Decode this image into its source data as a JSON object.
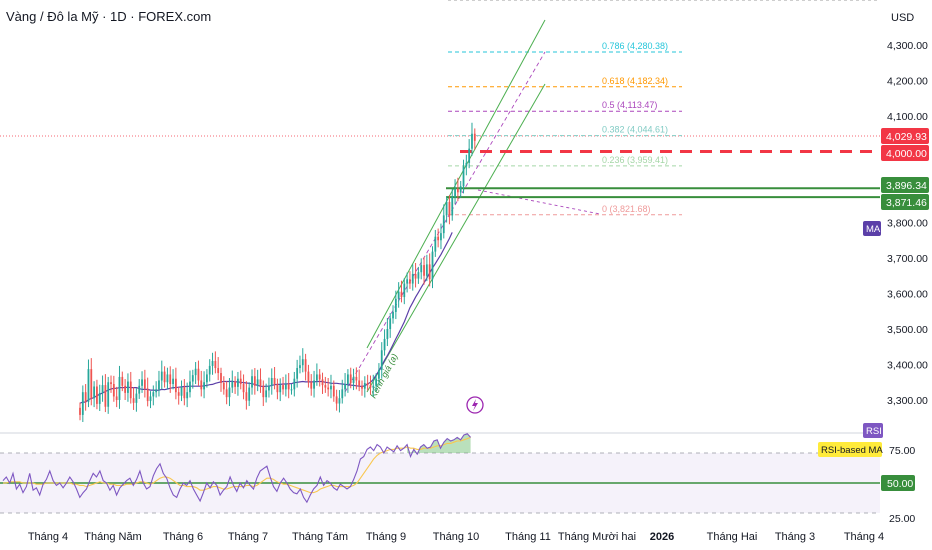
{
  "header": {
    "title": "Vàng / Đô la Mỹ · 1D · FOREX.com",
    "currency": "USD"
  },
  "price_axis": {
    "ticks": [
      {
        "v": 4300,
        "label": "4,300.00"
      },
      {
        "v": 4200,
        "label": "4,200.00"
      },
      {
        "v": 4100,
        "label": "4,100.00"
      },
      {
        "v": 3800,
        "label": "3,800.00"
      },
      {
        "v": 3700,
        "label": "3,700.00"
      },
      {
        "v": 3600,
        "label": "3,600.00"
      },
      {
        "v": 3500,
        "label": "3,500.00"
      },
      {
        "v": 3400,
        "label": "3,400.00"
      },
      {
        "v": 3300,
        "label": "3,300.00"
      }
    ],
    "tags": [
      {
        "v": 4029.93,
        "label": "4,029.93",
        "bg": "#f23645",
        "fg": "#ffffff"
      },
      {
        "v": 4000,
        "label": "4,000.00",
        "bg": "#f23645",
        "fg": "#ffffff"
      },
      {
        "v": 3896.34,
        "label": "3,896.34",
        "bg": "#388e3c",
        "fg": "#ffffff"
      },
      {
        "v": 3871.46,
        "label": "3,871.46",
        "bg": "#388e3c",
        "fg": "#ffffff"
      }
    ]
  },
  "rsi_axis": {
    "ticks": [
      {
        "v": 75,
        "label": "75.00"
      },
      {
        "v": 25,
        "label": "25.00"
      }
    ],
    "tags": [
      {
        "v": 50,
        "label": "50.00",
        "bg": "#388e3c",
        "fg": "#ffffff"
      }
    ]
  },
  "fib_levels": [
    {
      "ratio": "0.786",
      "price": 4280.38,
      "label": "0.786 (4,280.38)",
      "color": "#26c6da"
    },
    {
      "ratio": "0.618",
      "price": 4182.34,
      "label": "0.618 (4,182.34)",
      "color": "#ff9800"
    },
    {
      "ratio": "0.5",
      "price": 4113.47,
      "label": "0.5 (4,113.47)",
      "color": "#ab47bc"
    },
    {
      "ratio": "0.382",
      "price": 4044.61,
      "label": "0.382 (4,044.61)",
      "color": "#80cbc4"
    },
    {
      "ratio": "0.236",
      "price": 3959.41,
      "label": "0.236 (3,959.41)",
      "color": "#a5d6a7"
    },
    {
      "ratio": "0",
      "price": 3821.68,
      "label": "0 (3,821.68)",
      "color": "#ef9a9a"
    }
  ],
  "time_axis": [
    "Tháng 4",
    "Tháng Năm",
    "Tháng 6",
    "Tháng 7",
    "Tháng Tám",
    "Tháng 9",
    "Tháng 10",
    "Tháng 11",
    "Tháng Mười hai",
    "2026",
    "Tháng Hai",
    "Tháng 3",
    "Tháng 4"
  ],
  "labels": {
    "ma": "MA",
    "rsi": "RSI",
    "rsi_ma": "RSI-based MA",
    "channel": "Kênh giá (a)"
  },
  "colors": {
    "up": "#26a69a",
    "down": "#ef5350",
    "ma": "#5b3fa8",
    "rsi": "#7e57c2",
    "rsi_ma": "#f9c74f",
    "support": "#388e3c",
    "resistance": "#f23645"
  },
  "chart_data": {
    "type": "candlestick",
    "title": "Vàng / Đô la Mỹ · 1D · FOREX.com",
    "ylabel": "USD",
    "ylim": [
      3235,
      4380
    ],
    "x_ticks": [
      "Tháng 4",
      "Tháng Năm",
      "Tháng 6",
      "Tháng 7",
      "Tháng Tám",
      "Tháng 9",
      "Tháng 10",
      "Tháng 11",
      "Tháng Mười hai",
      "2026",
      "Tháng Hai",
      "Tháng 3",
      "Tháng 4"
    ],
    "close": [
      3258,
      3322,
      3295,
      3387,
      3305,
      3338,
      3289,
      3320,
      3342,
      3281,
      3350,
      3345,
      3310,
      3300,
      3365,
      3340,
      3320,
      3352,
      3305,
      3292,
      3318,
      3340,
      3358,
      3332,
      3297,
      3310,
      3322,
      3330,
      3355,
      3380,
      3350,
      3372,
      3345,
      3360,
      3322,
      3312,
      3336,
      3305,
      3322,
      3352,
      3370,
      3388,
      3355,
      3330,
      3350,
      3372,
      3396,
      3410,
      3390,
      3376,
      3348,
      3330,
      3308,
      3335,
      3352,
      3337,
      3360,
      3345,
      3322,
      3298,
      3335,
      3367,
      3340,
      3358,
      3340,
      3308,
      3327,
      3340,
      3362,
      3345,
      3322,
      3342,
      3330,
      3345,
      3330,
      3330,
      3360,
      3390,
      3398,
      3415,
      3380,
      3350,
      3332,
      3355,
      3372,
      3358,
      3342,
      3335,
      3330,
      3340,
      3310,
      3290,
      3305,
      3330,
      3345,
      3372,
      3348,
      3365,
      3355,
      3340,
      3332,
      3348,
      3342,
      3335,
      3340,
      3360,
      3385,
      3440,
      3472,
      3500,
      3530,
      3548,
      3585,
      3605,
      3590,
      3628,
      3640,
      3628,
      3655,
      3642,
      3660,
      3680,
      3650,
      3682,
      3640,
      3718,
      3760,
      3750,
      3770,
      3820,
      3858,
      3820,
      3872,
      3895,
      3885,
      3902,
      3958,
      3968,
      4008,
      4050,
      4030
    ],
    "ma_close": [
      3291,
      3294,
      3294,
      3301,
      3304,
      3307,
      3312,
      3316,
      3320,
      3324,
      3328,
      3331,
      3333,
      3333,
      3335,
      3335,
      3335,
      3336,
      3335,
      3335,
      3335,
      3332,
      3330,
      3330,
      3330,
      3328,
      3328,
      3327,
      3328,
      3330,
      3329,
      3331,
      3333,
      3335,
      3335,
      3336,
      3337,
      3338,
      3338,
      3339,
      3339,
      3339,
      3339,
      3339,
      3340,
      3341,
      3343,
      3344,
      3347,
      3349,
      3351,
      3352,
      3352,
      3352,
      3353,
      3351,
      3351,
      3350,
      3349,
      3348,
      3347,
      3346,
      3344,
      3341,
      3339,
      3338,
      3339,
      3339,
      3341,
      3343,
      3344,
      3344,
      3345,
      3345,
      3346,
      3346,
      3349,
      3350,
      3351,
      3352,
      3351,
      3351,
      3351,
      3351,
      3352,
      3352,
      3352,
      3350,
      3349,
      3347,
      3347,
      3347,
      3346,
      3345,
      3344,
      3343,
      3342,
      3341,
      3340,
      3339,
      3338,
      3340,
      3345,
      3350,
      3358,
      3370,
      3382,
      3396,
      3412,
      3425,
      3440,
      3456,
      3472,
      3488,
      3504,
      3520,
      3540,
      3560,
      3575,
      3590,
      3603,
      3617,
      3630,
      3644,
      3658,
      3672,
      3684,
      3697,
      3710,
      3725,
      3740,
      3755,
      3772
    ],
    "rsi": [
      52,
      55,
      50,
      58,
      45,
      49,
      42,
      47,
      58,
      44,
      46,
      40,
      49,
      53,
      60,
      52,
      48,
      50,
      46,
      50,
      55,
      51,
      45,
      38,
      42,
      45,
      52,
      58,
      55,
      60,
      52,
      50,
      44,
      48,
      40,
      46,
      49,
      52,
      54,
      48,
      53,
      60,
      50,
      45,
      47,
      56,
      62,
      66,
      58,
      54,
      46,
      40,
      38,
      45,
      50,
      48,
      52,
      45,
      40,
      35,
      42,
      50,
      46,
      51,
      48,
      40,
      44,
      47,
      55,
      48,
      43,
      50,
      46,
      52,
      48,
      45,
      54,
      60,
      62,
      64,
      55,
      47,
      43,
      50,
      54,
      50,
      45,
      42,
      41,
      45,
      38,
      34,
      40,
      45,
      48,
      55,
      48,
      52,
      50,
      46,
      44,
      49,
      47,
      45,
      47,
      53,
      60,
      70,
      72,
      78,
      80,
      77,
      82,
      80,
      75,
      80,
      78,
      76,
      81,
      77,
      79,
      82,
      72,
      78,
      74,
      80,
      82,
      79,
      80,
      85,
      86,
      79,
      84,
      87,
      85,
      86,
      88,
      86,
      90,
      91,
      88
    ],
    "rsi_ma": [
      50,
      50,
      51,
      51,
      51,
      51,
      50,
      50,
      50,
      50,
      49,
      49,
      49,
      50,
      50,
      50,
      50,
      50,
      50,
      50,
      50,
      49,
      49,
      48,
      48,
      47,
      48,
      49,
      50,
      51,
      50,
      50,
      49,
      49,
      48,
      48,
      48,
      49,
      49,
      49,
      50,
      51,
      51,
      50,
      49,
      50,
      52,
      54,
      55,
      55,
      54,
      52,
      50,
      48,
      48,
      47,
      47,
      47,
      46,
      44,
      44,
      45,
      46,
      47,
      47,
      46,
      45,
      45,
      46,
      47,
      47,
      47,
      47,
      48,
      48,
      47,
      48,
      50,
      52,
      54,
      54,
      53,
      51,
      50,
      49,
      49,
      48,
      47,
      46,
      45,
      44,
      43,
      42,
      42,
      43,
      45,
      46,
      47,
      48,
      48,
      47,
      47,
      47,
      47,
      47,
      48,
      50,
      54,
      58,
      62,
      66,
      70,
      73,
      75,
      76,
      77,
      78,
      78,
      79,
      79,
      79,
      80,
      79,
      79,
      78,
      78,
      79,
      79,
      79,
      80,
      81,
      81,
      82,
      83,
      83,
      84,
      85,
      85,
      86,
      87,
      88
    ],
    "horizontal_levels": [
      4029.93,
      4000,
      3896.34,
      3871.46
    ],
    "rsi_levels": [
      75,
      50,
      25
    ]
  }
}
